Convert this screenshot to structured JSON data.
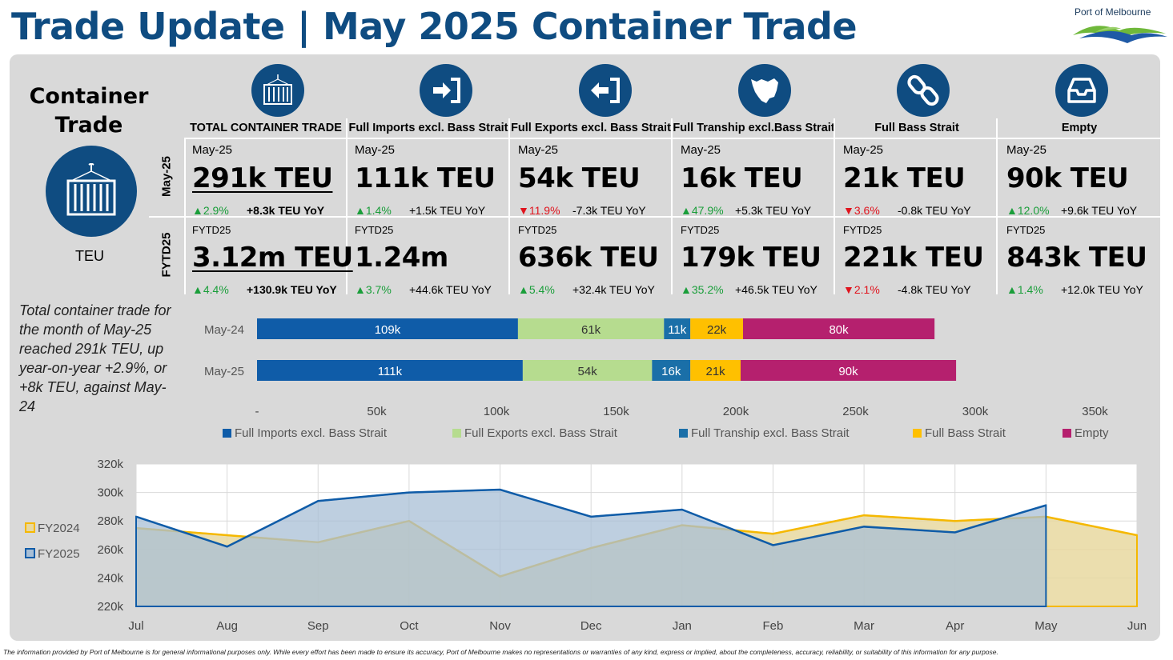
{
  "header": {
    "title": "Trade Update | May 2025 Container Trade",
    "logo_text": "Port of Melbourne"
  },
  "side": {
    "title_line1": "Container",
    "title_line2": "Trade",
    "unit": "TEU"
  },
  "row_labels": {
    "month": "May-25",
    "ytd": "FYTD25"
  },
  "categories": [
    {
      "icon": "container-icon",
      "header": "TOTAL CONTAINER TRADE",
      "month": {
        "period": "May-25",
        "value": "291k TEU",
        "pct": "2.9%",
        "dir": "up",
        "yoy": "+8.3k TEU YoY"
      },
      "ytd": {
        "period": "FYTD25",
        "value": "3.12m TEU",
        "pct": "4.4%",
        "dir": "up",
        "yoy": "+130.9k TEU YoY"
      }
    },
    {
      "icon": "import-icon",
      "header": "Full Imports excl. Bass Strait",
      "month": {
        "period": "May-25",
        "value": "111k TEU",
        "pct": "1.4%",
        "dir": "up",
        "yoy": "+1.5k TEU YoY"
      },
      "ytd": {
        "period": "FYTD25",
        "value": "1.24m",
        "pct": "3.7%",
        "dir": "up",
        "yoy": "+44.6k TEU YoY"
      }
    },
    {
      "icon": "export-icon",
      "header": "Full Exports excl. Bass Strait",
      "month": {
        "period": "May-25",
        "value": "54k TEU",
        "pct": "11.9%",
        "dir": "down",
        "yoy": "-7.3k TEU YoY"
      },
      "ytd": {
        "period": "FYTD25",
        "value": "636k TEU",
        "pct": "5.4%",
        "dir": "up",
        "yoy": "+32.4k TEU YoY"
      }
    },
    {
      "icon": "tasmania-map-icon",
      "header": "Full Tranship excl.Bass Strait",
      "month": {
        "period": "May-25",
        "value": "16k TEU",
        "pct": "47.9%",
        "dir": "up",
        "yoy": "+5.3k TEU YoY"
      },
      "ytd": {
        "period": "FYTD25",
        "value": "179k TEU",
        "pct": "35.2%",
        "dir": "up",
        "yoy": "+46.5k TEU YoY"
      }
    },
    {
      "icon": "chain-link-icon",
      "header": "Full Bass Strait",
      "month": {
        "period": "May-25",
        "value": "21k TEU",
        "pct": "3.6%",
        "dir": "down",
        "yoy": "-0.8k TEU YoY"
      },
      "ytd": {
        "period": "FYTD25",
        "value": "221k TEU",
        "pct": "2.1%",
        "dir": "down",
        "yoy": "-4.8k TEU YoY"
      }
    },
    {
      "icon": "empty-tray-icon",
      "header": "Empty",
      "month": {
        "period": "May-25",
        "value": "90k TEU",
        "pct": "12.0%",
        "dir": "up",
        "yoy": "+9.6k TEU YoY"
      },
      "ytd": {
        "period": "FYTD25",
        "value": "843k TEU",
        "pct": "1.4%",
        "dir": "up",
        "yoy": "+12.0k TEU YoY"
      }
    }
  ],
  "summary": "Total container trade for the month of May-25 reached 291k TEU, up year-on-year +2.9%, or +8k TEU, against May-24",
  "footer": "The information provided by Port of Melbourne is for general informational purposes only. While every effort has been made to ensure its accuracy, Port of Melbourne makes no representations or warranties of any kind, express or implied, about the completeness, accuracy, reliability, or suitability of this information for any purpose.",
  "chart_data": [
    {
      "type": "bar",
      "orientation": "horizontal",
      "stacked": true,
      "categories": [
        "May-24",
        "May-25"
      ],
      "series": [
        {
          "name": "Full Imports excl. Bass Strait",
          "color": "#0f5ca8",
          "values": [
            109,
            111
          ],
          "labels": [
            "109k",
            "111k"
          ]
        },
        {
          "name": "Full Exports excl. Bass Strait",
          "color": "#b6dc8f",
          "values": [
            61,
            54
          ],
          "labels": [
            "61k",
            "54k"
          ]
        },
        {
          "name": "Full Tranship excl. Bass Strait",
          "color": "#1a6fa8",
          "values": [
            11,
            16
          ],
          "labels": [
            "11k",
            "16k"
          ]
        },
        {
          "name": "Full Bass Strait",
          "color": "#ffc000",
          "values": [
            22,
            21
          ],
          "labels": [
            "22k",
            "21k"
          ]
        },
        {
          "name": "Empty",
          "color": "#b5206e",
          "values": [
            80,
            90
          ],
          "labels": [
            "80k",
            "90k"
          ]
        }
      ],
      "xlim": [
        0,
        350
      ],
      "xticks": [
        "-",
        "50k",
        "100k",
        "150k",
        "200k",
        "250k",
        "300k",
        "350k"
      ],
      "legend": "bottom"
    },
    {
      "type": "area",
      "x": [
        "Jul",
        "Aug",
        "Sep",
        "Oct",
        "Nov",
        "Dec",
        "Jan",
        "Feb",
        "Mar",
        "Apr",
        "May",
        "Jun"
      ],
      "series": [
        {
          "name": "FY2024",
          "color": "#f5b800",
          "fill": "#e8d8a0",
          "values": [
            275,
            270,
            265,
            280,
            241,
            261,
            277,
            271,
            284,
            280,
            283,
            270
          ]
        },
        {
          "name": "FY2025",
          "color": "#0f5ca8",
          "fill": "#a8bfd6",
          "values": [
            283,
            262,
            294,
            300,
            302,
            283,
            288,
            263,
            276,
            272,
            291,
            null
          ]
        }
      ],
      "ylim": [
        220,
        320
      ],
      "yticks": [
        "220k",
        "240k",
        "260k",
        "280k",
        "300k",
        "320k"
      ],
      "legend": "left"
    }
  ]
}
